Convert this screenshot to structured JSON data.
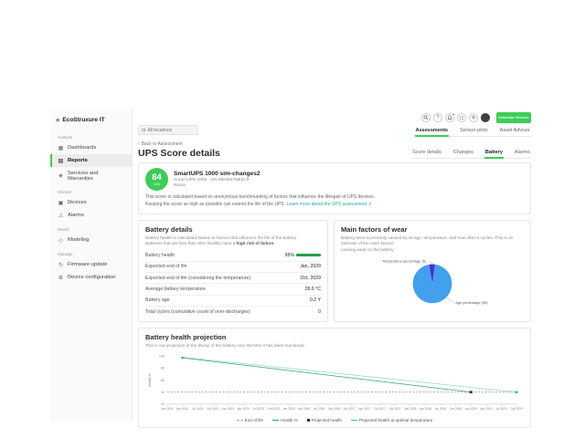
{
  "app": {
    "name": "EcoStruxure IT",
    "logo": "Schneider Electric"
  },
  "colors": {
    "brand_green": "#3dcd58",
    "teal_link": "#2aa3a0",
    "notification_red": "#e53935",
    "health_bar_green": "#21a04c",
    "pie_age_blue": "#42a0ee",
    "pie_temperature_purple": "#4a30cf"
  },
  "icons": {
    "menu": "≡",
    "back": "‹",
    "help": "?",
    "gear": "⚙",
    "dashboards": "▦",
    "reports": "▤",
    "services": "◈",
    "devices": "▣",
    "alarms": "⚠",
    "modeling": "◇",
    "firmware": "↻",
    "config": "⚙"
  },
  "sidebar": {
    "sections": [
      {
        "label": "Analyze",
        "items": [
          {
            "label": "Dashboards"
          },
          {
            "label": "Reports"
          },
          {
            "label": "Services and Warranties"
          }
        ]
      },
      {
        "label": "Monitor",
        "items": [
          {
            "label": "Devices"
          },
          {
            "label": "Alarms"
          }
        ]
      },
      {
        "label": "Model",
        "items": [
          {
            "label": "Modeling"
          }
        ]
      },
      {
        "label": "Manage",
        "items": [
          {
            "label": "Firmware update"
          },
          {
            "label": "Device configuration"
          }
        ]
      }
    ]
  },
  "toolbar": {
    "search_placeholder": "All locations"
  },
  "page_tabs": [
    {
      "label": "Assessments"
    },
    {
      "label": "Sensor plots"
    },
    {
      "label": "Asset Advisor"
    }
  ],
  "page": {
    "back_link": "Back to Assessment",
    "title": "UPS Score details"
  },
  "section_tabs": [
    {
      "label": "Score details"
    },
    {
      "label": "Changes"
    },
    {
      "label": "Battery"
    },
    {
      "label": "Alarms"
    }
  ],
  "score_card": {
    "score": "84",
    "score_max": "/100",
    "device_name": "SmartUPS 1000 sim-changes2",
    "device_sub": "Smart-UPS 1000 · SN WE0847NB3C9",
    "device_location": "Roma",
    "description_line1": "This score is calculated based on anonymous benchmarking of factors that influence the lifespan of UPS devices.",
    "description_line2": "Keeping the score as high as possible can extend the life of the UPS.",
    "learn_more": "Learn more about the UPS assessment ↗"
  },
  "battery_details": {
    "title": "Battery details",
    "description_line1": "Battery health is calculated based on factors that influence the life of the battery.",
    "description_line2_prefix": "Batteries that are less than 90% healthy have a ",
    "description_line2_bold": "high risk of failure.",
    "rows": [
      {
        "label": "Battery health",
        "value": "95%",
        "bar_percent": 95
      },
      {
        "label": "Expected end of life",
        "value": "Jan, 2029"
      },
      {
        "label": "Expected end of life (considering the temperature)",
        "value": "Oct, 2029"
      },
      {
        "label": "Average battery temperature",
        "value": "26.6 °C"
      },
      {
        "label": "Battery age",
        "value": "0.2 Y"
      },
      {
        "label": "Total cycles (cumulative count of over-discharges)",
        "value": "0"
      }
    ]
  },
  "wear_panel": {
    "title": "Main factors of wear",
    "description_line1": "Battery wear is primarily caused by its age, temperature, and how often it cycles. This is an estimate of the main factors",
    "description_line2": "causing wear on the battery.",
    "label_temperature": "Temperature percentage (5)",
    "label_age": "Age percentage (95)"
  },
  "projection_panel": {
    "title": "Battery health projection",
    "description": "This is our projection of the decay of the battery over the time it has been monitored."
  },
  "chart_data": [
    {
      "type": "line",
      "title": "Battery health projection",
      "xlabel": "",
      "ylabel": "Health %",
      "ylim": [
        20,
        100
      ],
      "yticks": [
        20,
        40,
        60,
        80,
        100
      ],
      "grid": false,
      "legend_position": "bottom",
      "categories": [
        "Jan 2024",
        "Apr 2024",
        "Jul 2024",
        "Oct 2024",
        "Jan 2025",
        "Apr 2025",
        "Jul 2025",
        "Oct 2025",
        "Jan 2026",
        "Apr 2026",
        "Jul 2026",
        "Oct 2026",
        "Jan 2027",
        "Apr 2027",
        "Jul 2027",
        "Oct 2027",
        "Jan 2028",
        "Apr 2028",
        "Jul 2028",
        "Oct 2028",
        "Jan 2029",
        "Apr 2029",
        "Jul 2029",
        "Oct 2029"
      ],
      "series": [
        {
          "name": "End of life",
          "color": "#9e9e9e",
          "dash": true,
          "points": [
            [
              "Jan 2024",
              40
            ],
            [
              "Oct 2029",
              40
            ]
          ]
        },
        {
          "name": "Health %",
          "color": "#2f9e8f",
          "dash": false,
          "points": [
            [
              "Apr 2024",
              97
            ],
            [
              "Jan 2029",
              40
            ]
          ]
        },
        {
          "name": "Projected health at optimal temperature",
          "color": "#9fd8c4",
          "dash": false,
          "points": [
            [
              "Apr 2024",
              98
            ],
            [
              "Oct 2029",
              40
            ]
          ]
        }
      ],
      "markers": [
        {
          "x": "Apr 2024",
          "y": 97,
          "color": "#2f9e8f",
          "shape": "circle"
        },
        {
          "x": "Jan 2029",
          "y": 40,
          "color": "#1b2a4a",
          "shape": "square"
        },
        {
          "x": "Oct 2029",
          "y": 40,
          "color": "#57b894",
          "shape": "square"
        }
      ],
      "legend": [
        {
          "label": "End of life",
          "color": "#9e9e9e",
          "style": "dashed-line"
        },
        {
          "label": "Health %",
          "color": "#2f9e8f",
          "style": "line"
        },
        {
          "label": "Projected health",
          "color": "#1b2a4a",
          "style": "square"
        },
        {
          "label": "Projected health at optimal temperature",
          "color": "#57b894",
          "style": "line"
        }
      ]
    },
    {
      "type": "pie",
      "title": "Main factors of wear",
      "slices": [
        {
          "label": "Age percentage",
          "value": 95,
          "color": "#42a0ee"
        },
        {
          "label": "Temperature percentage",
          "value": 5,
          "color": "#4a30cf"
        }
      ]
    }
  ]
}
